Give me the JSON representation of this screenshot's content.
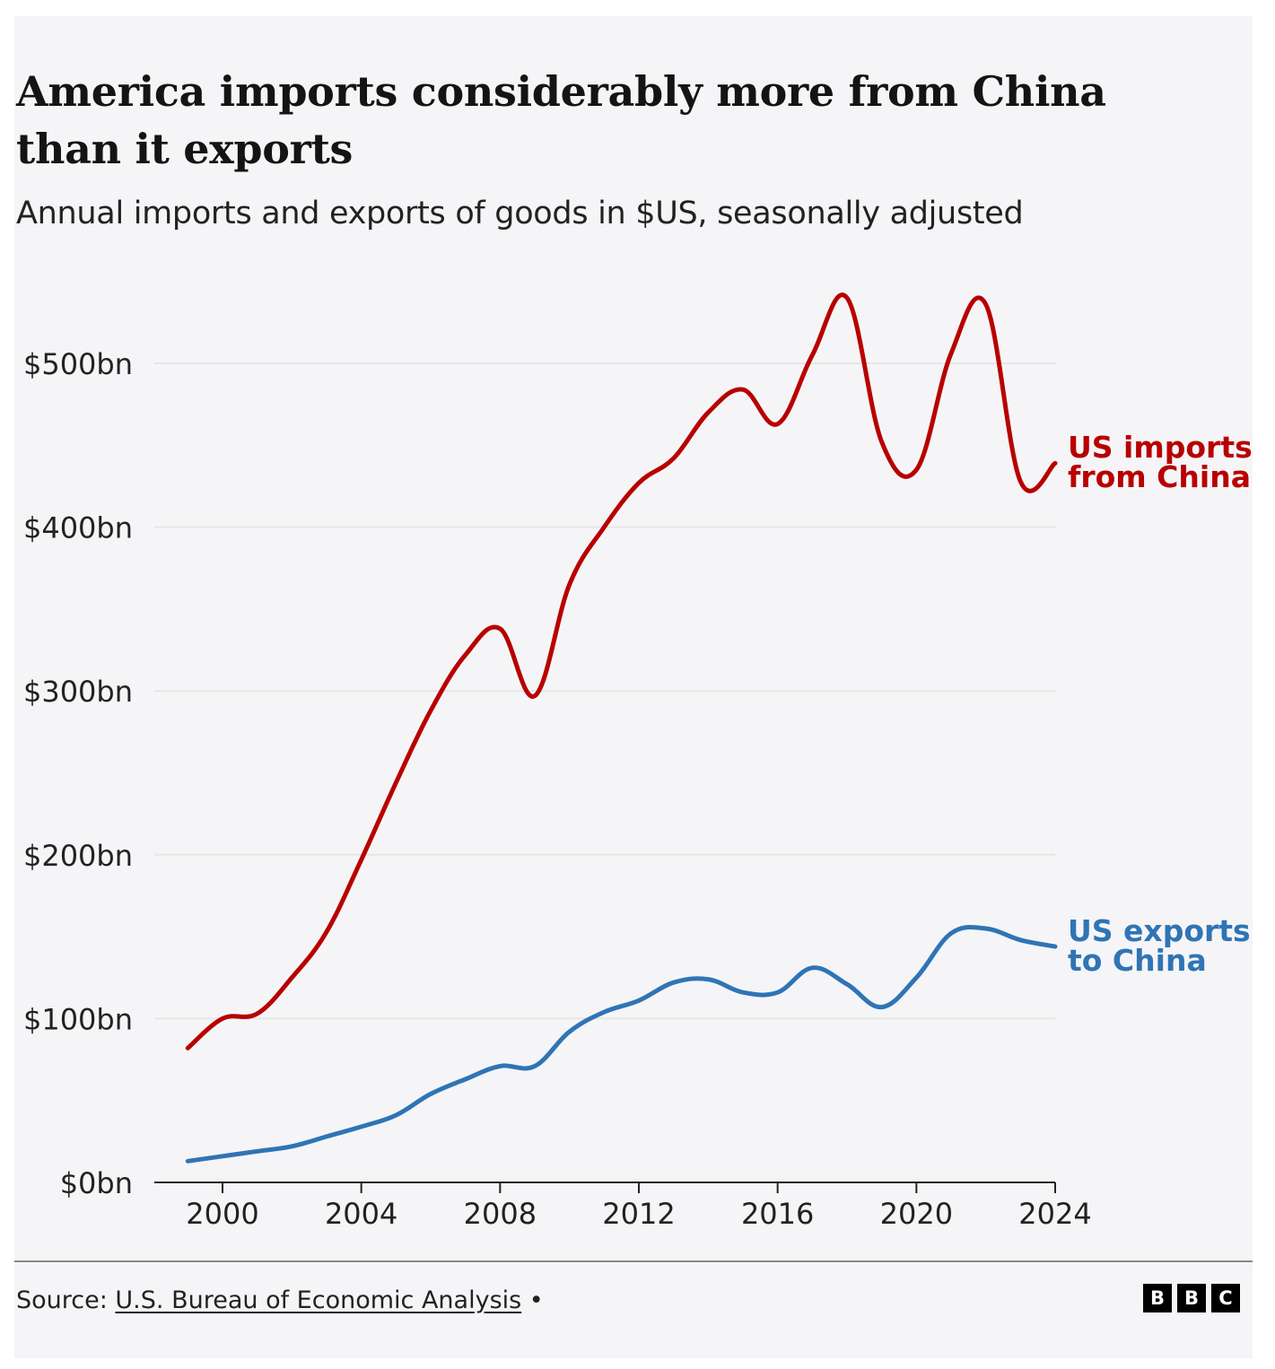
{
  "header": {
    "title": "America imports considerably more from China than it exports",
    "subtitle": "Annual imports and exports of goods in $US, seasonally adjusted"
  },
  "footer": {
    "source_prefix": "Source: ",
    "source_link": "U.S. Bureau of Economic Analysis",
    "source_suffix": " •",
    "logo_letters": [
      "B",
      "B",
      "C"
    ]
  },
  "colors": {
    "imports": "#b80000",
    "exports": "#2f74b5",
    "text": "#222222",
    "grid": "#e6e6e6",
    "axis": "#222222",
    "background": "#f5f5f7"
  },
  "chart_data": {
    "type": "line",
    "title": "America imports considerably more from China than it exports",
    "subtitle": "Annual imports and exports of goods in $US, seasonally adjusted",
    "xlabel": "",
    "ylabel": "",
    "xlim": [
      1998,
      2024
    ],
    "ylim": [
      0,
      550
    ],
    "x_ticks": [
      2000,
      2004,
      2008,
      2012,
      2016,
      2020,
      2024
    ],
    "y_ticks": [
      0,
      100,
      200,
      300,
      400,
      500
    ],
    "y_tick_labels": [
      "$0bn",
      "$100bn",
      "$200bn",
      "$300bn",
      "$400bn",
      "$500bn"
    ],
    "grid": true,
    "legend": "direct-labels-right",
    "x": [
      1999,
      2000,
      2001,
      2002,
      2003,
      2004,
      2005,
      2006,
      2007,
      2008,
      2009,
      2010,
      2011,
      2012,
      2013,
      2014,
      2015,
      2016,
      2017,
      2018,
      2019,
      2020,
      2021,
      2022,
      2023,
      2024
    ],
    "series": [
      {
        "name": "US imports from China",
        "label_lines": [
          "US imports",
          "from China"
        ],
        "values": [
          82,
          100,
          103,
          125,
          153,
          197,
          244,
          288,
          322,
          338,
          297,
          365,
          400,
          427,
          442,
          470,
          484,
          463,
          505,
          540,
          452,
          435,
          506,
          536,
          428,
          439
        ]
      },
      {
        "name": "US exports to China",
        "label_lines": [
          "US exports",
          "to China"
        ],
        "values": [
          13,
          16,
          19,
          22,
          28,
          34,
          41,
          54,
          63,
          71,
          71,
          92,
          104,
          111,
          122,
          124,
          116,
          116,
          131,
          121,
          107,
          125,
          152,
          155,
          148,
          144
        ]
      }
    ]
  }
}
